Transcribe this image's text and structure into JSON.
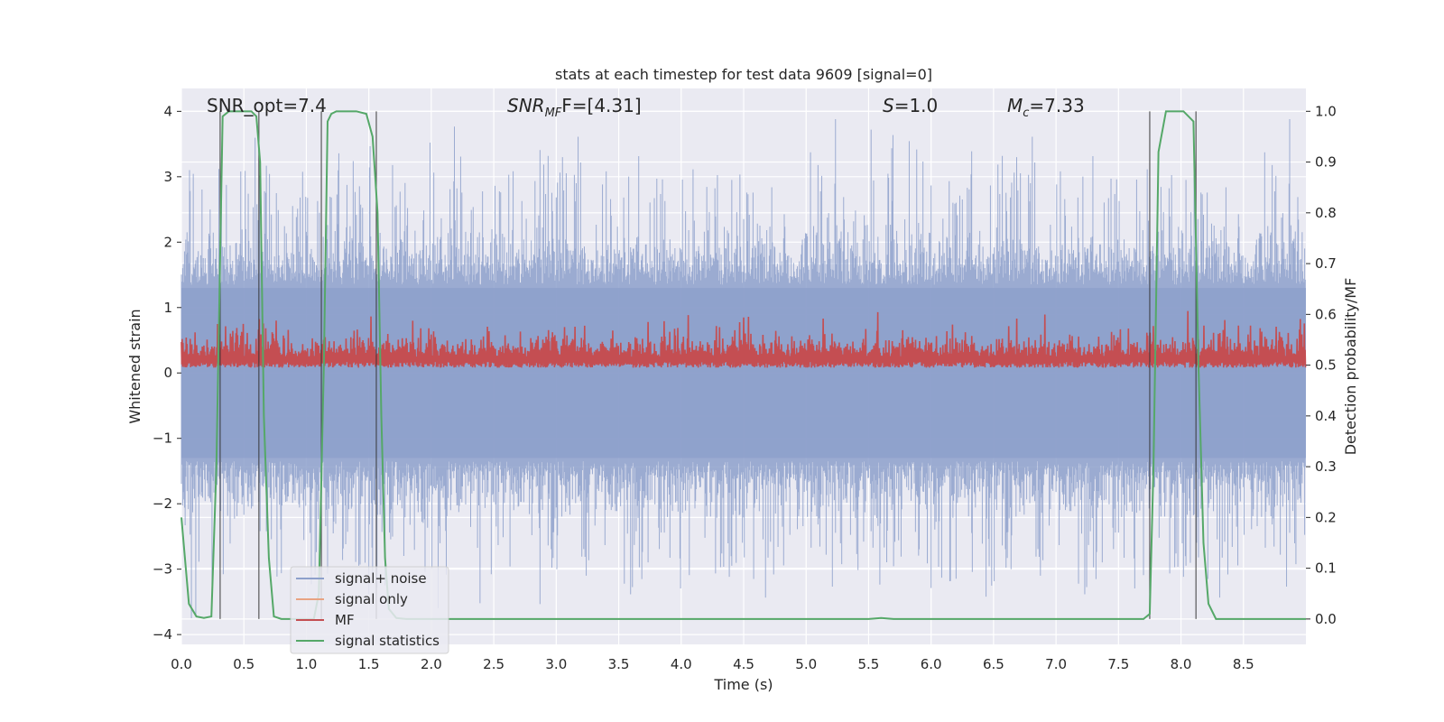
{
  "chart_data": {
    "type": "line",
    "title": "stats at each timestep for test data 9609 [signal=0]",
    "xlabel": "Time (s)",
    "ylabel": "Whitened strain",
    "y2label": "Detection probability/MF",
    "xlim": [
      0.0,
      9.0
    ],
    "ylim": [
      -4.15,
      4.35
    ],
    "y2lim": [
      -0.05,
      1.045
    ],
    "xticks": [
      "0.0",
      "0.5",
      "1.0",
      "1.5",
      "2.0",
      "2.5",
      "3.0",
      "3.5",
      "4.0",
      "4.5",
      "5.0",
      "5.5",
      "6.0",
      "6.5",
      "7.0",
      "7.5",
      "8.0",
      "8.5"
    ],
    "yticks": [
      "4",
      "3",
      "2",
      "1",
      "0",
      "−1",
      "−2",
      "−3",
      "−4"
    ],
    "y2ticks": [
      "1.0",
      "0.9",
      "0.8",
      "0.7",
      "0.6",
      "0.5",
      "0.4",
      "0.3",
      "0.2",
      "0.1",
      "0.0"
    ],
    "annotations": {
      "snr_opt": "SNR_opt=7.4",
      "snr_mf_sym": "SNR",
      "snr_mf_sub": "MF",
      "snr_mf_rest": "F=[4.31]",
      "s_sym": "S",
      "s_rest": "=1.0",
      "mc_sym": "M",
      "mc_sub": "c",
      "mc_rest": "=7.33"
    },
    "legend": {
      "location": "lower-left",
      "entries": [
        {
          "label": "signal+ noise",
          "color": "#8da0cb"
        },
        {
          "label": "signal only",
          "color": "#e8a382"
        },
        {
          "label": "MF",
          "color": "#c44e52"
        },
        {
          "label": "signal statistics",
          "color": "#55a868"
        }
      ]
    },
    "series": [
      {
        "name": "signal+ noise",
        "axis": "left",
        "color": "#8da0cb",
        "note": "dense whitened noise, |y| up to ~4, roughly symmetric about 0"
      },
      {
        "name": "signal only",
        "axis": "left",
        "color": "#e8a382",
        "values": []
      },
      {
        "name": "MF",
        "axis": "right",
        "color": "#c44e52",
        "note": "matched-filter output fluctuating ~0.49-0.6 on right axis"
      },
      {
        "name": "signal statistics",
        "axis": "right",
        "color": "#55a868",
        "x": [
          0.0,
          0.06,
          0.12,
          0.18,
          0.24,
          0.28,
          0.33,
          0.38,
          0.44,
          0.5,
          0.56,
          0.6,
          0.63,
          0.66,
          0.7,
          0.74,
          0.8,
          0.9,
          1.0,
          1.06,
          1.1,
          1.14,
          1.17,
          1.2,
          1.24,
          1.3,
          1.4,
          1.48,
          1.53,
          1.57,
          1.6,
          1.63,
          1.66,
          1.72,
          1.8,
          1.9,
          2.0,
          3.0,
          4.0,
          5.0,
          5.5,
          5.6,
          5.7,
          6.0,
          7.0,
          7.7,
          7.75,
          7.78,
          7.82,
          7.88,
          7.95,
          8.02,
          8.06,
          8.1,
          8.14,
          8.18,
          8.22,
          8.28,
          8.4,
          9.0
        ],
        "values": [
          0.2,
          0.03,
          0.005,
          0.002,
          0.005,
          0.3,
          0.99,
          1.0,
          1.0,
          1.0,
          1.0,
          0.99,
          0.9,
          0.4,
          0.12,
          0.005,
          0.0,
          0.0,
          0.0,
          0.0,
          0.05,
          0.5,
          0.98,
          0.995,
          1.0,
          1.0,
          1.0,
          0.995,
          0.95,
          0.8,
          0.4,
          0.12,
          0.02,
          0.002,
          0.0,
          0.0,
          0.0,
          0.0,
          0.0,
          0.0,
          0.0,
          0.002,
          0.0,
          0.0,
          0.0,
          0.0,
          0.01,
          0.3,
          0.92,
          1.0,
          1.0,
          1.0,
          0.99,
          0.98,
          0.5,
          0.15,
          0.03,
          0.0,
          0.0,
          0.0
        ]
      }
    ],
    "vertical_lines_x": [
      0.31,
      0.62,
      1.12,
      1.56,
      7.75,
      8.12
    ]
  }
}
